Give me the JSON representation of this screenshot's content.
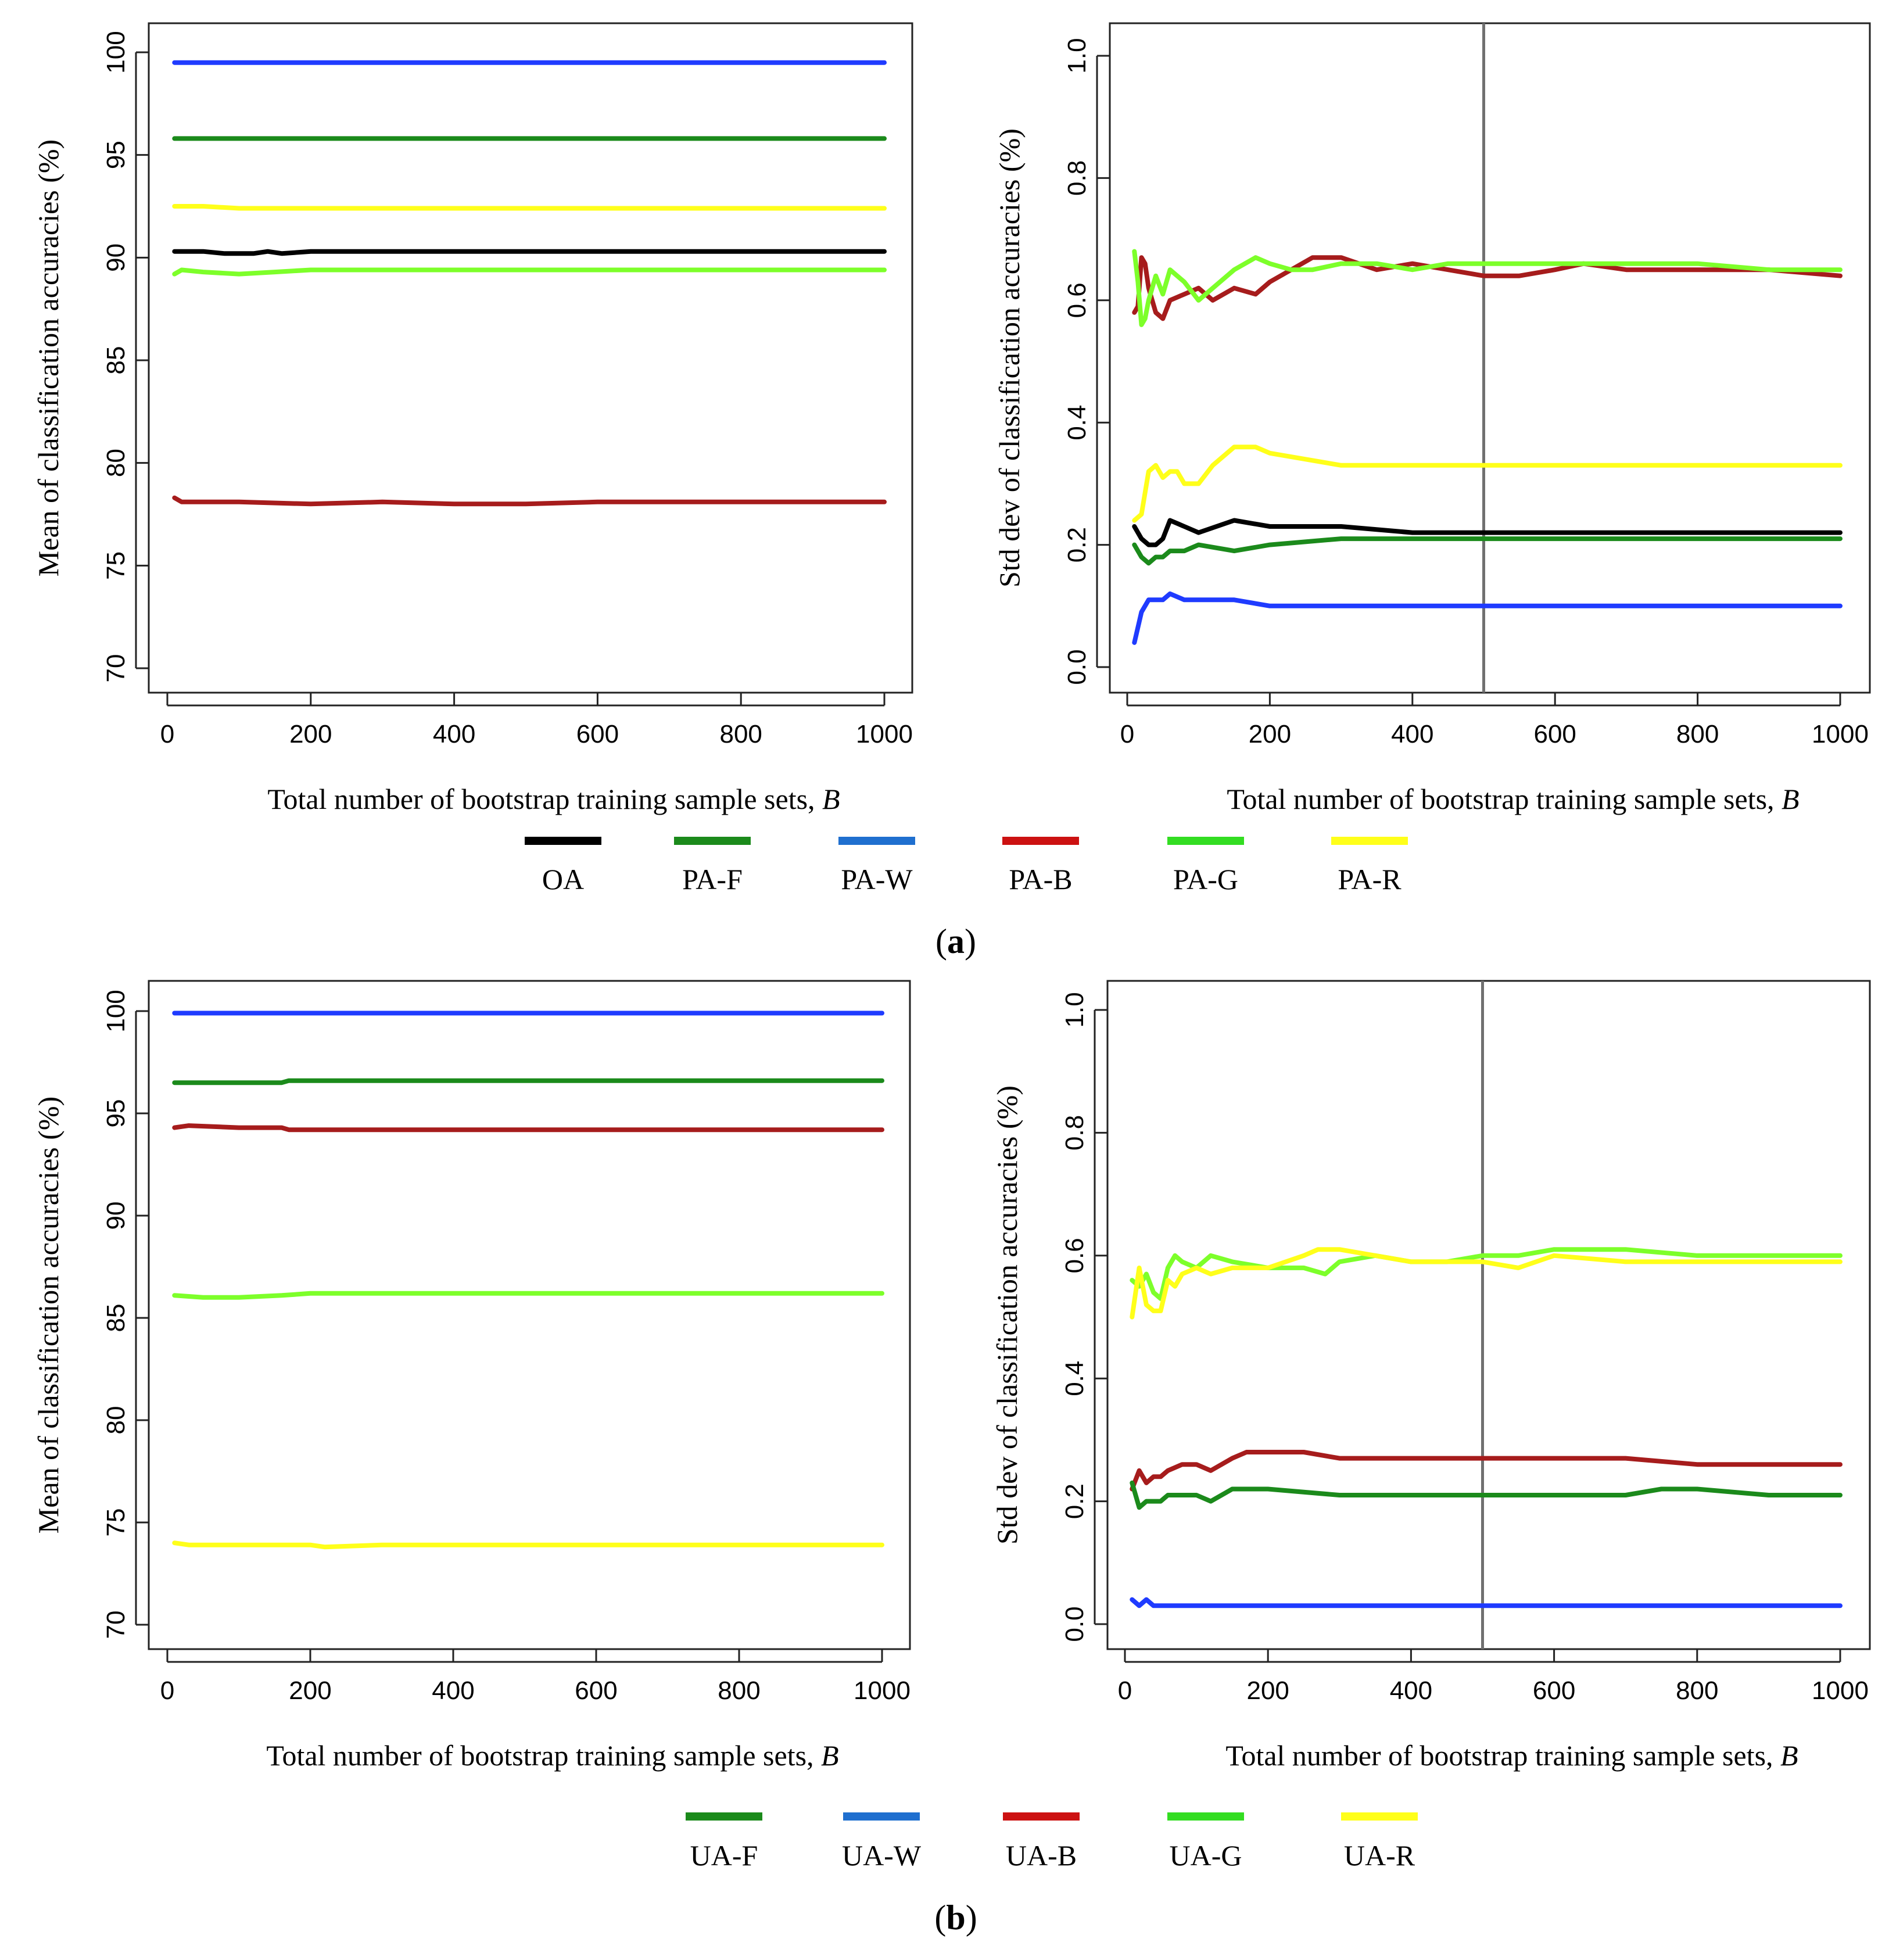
{
  "figure": {
    "panels": [
      {
        "panel_label": "a",
        "legend": [
          "OA",
          "PA-F",
          "PA-W",
          "PA-B",
          "PA-G",
          "PA-R"
        ]
      },
      {
        "panel_label": "b",
        "legend": [
          "UA-F",
          "UA-W",
          "UA-B",
          "UA-G",
          "UA-R"
        ]
      }
    ]
  },
  "colors": {
    "OA": "#000000",
    "F": "#1b8a1b",
    "W": "#1f3bff",
    "W_legend": "#1f6fcf",
    "B": "#a61c1c",
    "B_legend": "#cc1111",
    "G": "#7dff2a",
    "G_legend": "#33dd22",
    "R": "#ffff1a",
    "vline": "#707070"
  },
  "chart_data": [
    {
      "type": "line",
      "panel": "a",
      "xlabel": "Total number of bootstrap training sample sets, B",
      "ylabel": "Mean of classification accuracies (%)",
      "xlim": [
        0,
        1000
      ],
      "ylim": [
        70,
        100
      ],
      "xticks": [
        0,
        200,
        400,
        600,
        800,
        1000
      ],
      "yticks": [
        70,
        75,
        80,
        85,
        90,
        95,
        100
      ],
      "grid": false,
      "series": [
        {
          "name": "PA-W",
          "color_key": "W",
          "x": [
            10,
            100,
            200,
            400,
            600,
            800,
            1000
          ],
          "y": [
            99.5,
            99.5,
            99.5,
            99.5,
            99.5,
            99.5,
            99.5
          ]
        },
        {
          "name": "PA-F",
          "color_key": "F",
          "x": [
            10,
            100,
            200,
            400,
            600,
            800,
            1000
          ],
          "y": [
            95.8,
            95.8,
            95.8,
            95.8,
            95.8,
            95.8,
            95.8
          ]
        },
        {
          "name": "PA-R",
          "color_key": "R",
          "x": [
            10,
            50,
            100,
            200,
            300,
            400,
            500,
            600,
            700,
            800,
            900,
            1000
          ],
          "y": [
            92.5,
            92.5,
            92.4,
            92.4,
            92.4,
            92.4,
            92.4,
            92.4,
            92.4,
            92.4,
            92.4,
            92.4
          ]
        },
        {
          "name": "OA",
          "color_key": "OA",
          "x": [
            10,
            50,
            80,
            120,
            140,
            160,
            200,
            400,
            600,
            800,
            1000
          ],
          "y": [
            90.3,
            90.3,
            90.2,
            90.2,
            90.3,
            90.2,
            90.3,
            90.3,
            90.3,
            90.3,
            90.3
          ]
        },
        {
          "name": "PA-G",
          "color_key": "G",
          "x": [
            10,
            20,
            50,
            100,
            150,
            200,
            300,
            400,
            600,
            800,
            1000
          ],
          "y": [
            89.2,
            89.4,
            89.3,
            89.2,
            89.3,
            89.4,
            89.4,
            89.4,
            89.4,
            89.4,
            89.4
          ]
        },
        {
          "name": "PA-B",
          "color_key": "B",
          "x": [
            10,
            20,
            50,
            100,
            200,
            300,
            400,
            500,
            600,
            800,
            1000
          ],
          "y": [
            78.3,
            78.1,
            78.1,
            78.1,
            78.0,
            78.1,
            78.0,
            78.0,
            78.1,
            78.1,
            78.1
          ]
        }
      ]
    },
    {
      "type": "line",
      "panel": "a",
      "xlabel": "Total number of bootstrap training sample sets, B",
      "ylabel": "Std dev of classification accuracies (%)",
      "xlim": [
        0,
        1000
      ],
      "ylim": [
        0.0,
        1.0
      ],
      "xticks": [
        0,
        200,
        400,
        600,
        800,
        1000
      ],
      "yticks": [
        0.0,
        0.2,
        0.4,
        0.6,
        0.8,
        1.0
      ],
      "vline_x": 500,
      "grid": false,
      "series": [
        {
          "name": "PA-B",
          "color_key": "B",
          "x": [
            10,
            15,
            20,
            25,
            30,
            40,
            50,
            60,
            80,
            100,
            120,
            150,
            180,
            200,
            230,
            260,
            300,
            350,
            400,
            450,
            500,
            550,
            600,
            640,
            700,
            800,
            900,
            1000
          ],
          "y": [
            0.58,
            0.59,
            0.67,
            0.66,
            0.62,
            0.58,
            0.57,
            0.6,
            0.61,
            0.62,
            0.6,
            0.62,
            0.61,
            0.63,
            0.65,
            0.67,
            0.67,
            0.65,
            0.66,
            0.65,
            0.64,
            0.64,
            0.65,
            0.66,
            0.65,
            0.65,
            0.65,
            0.64
          ]
        },
        {
          "name": "PA-G",
          "color_key": "G",
          "x": [
            10,
            15,
            20,
            25,
            30,
            40,
            50,
            60,
            80,
            100,
            120,
            150,
            180,
            200,
            230,
            260,
            300,
            350,
            400,
            450,
            500,
            600,
            700,
            800,
            900,
            1000
          ],
          "y": [
            0.68,
            0.63,
            0.56,
            0.57,
            0.6,
            0.64,
            0.61,
            0.65,
            0.63,
            0.6,
            0.62,
            0.65,
            0.67,
            0.66,
            0.65,
            0.65,
            0.66,
            0.66,
            0.65,
            0.66,
            0.66,
            0.66,
            0.66,
            0.66,
            0.65,
            0.65
          ]
        },
        {
          "name": "PA-R",
          "color_key": "R",
          "x": [
            10,
            20,
            30,
            40,
            50,
            60,
            70,
            80,
            100,
            120,
            150,
            180,
            200,
            250,
            300,
            350,
            400,
            500,
            600,
            700,
            800,
            900,
            1000
          ],
          "y": [
            0.24,
            0.25,
            0.32,
            0.33,
            0.31,
            0.32,
            0.32,
            0.3,
            0.3,
            0.33,
            0.36,
            0.36,
            0.35,
            0.34,
            0.33,
            0.33,
            0.33,
            0.33,
            0.33,
            0.33,
            0.33,
            0.33,
            0.33
          ]
        },
        {
          "name": "OA",
          "color_key": "OA",
          "x": [
            10,
            20,
            30,
            40,
            50,
            60,
            80,
            100,
            150,
            200,
            300,
            400,
            500,
            600,
            700,
            800,
            900,
            1000
          ],
          "y": [
            0.23,
            0.21,
            0.2,
            0.2,
            0.21,
            0.24,
            0.23,
            0.22,
            0.24,
            0.23,
            0.23,
            0.22,
            0.22,
            0.22,
            0.22,
            0.22,
            0.22,
            0.22
          ]
        },
        {
          "name": "PA-F",
          "color_key": "F",
          "x": [
            10,
            20,
            30,
            40,
            50,
            60,
            80,
            100,
            150,
            200,
            300,
            400,
            500,
            600,
            700,
            800,
            900,
            1000
          ],
          "y": [
            0.2,
            0.18,
            0.17,
            0.18,
            0.18,
            0.19,
            0.19,
            0.2,
            0.19,
            0.2,
            0.21,
            0.21,
            0.21,
            0.21,
            0.21,
            0.21,
            0.21,
            0.21
          ]
        },
        {
          "name": "PA-W",
          "color_key": "W",
          "x": [
            10,
            20,
            30,
            40,
            50,
            60,
            80,
            100,
            150,
            200,
            300,
            400,
            500,
            600,
            700,
            800,
            900,
            1000
          ],
          "y": [
            0.04,
            0.09,
            0.11,
            0.11,
            0.11,
            0.12,
            0.11,
            0.11,
            0.11,
            0.1,
            0.1,
            0.1,
            0.1,
            0.1,
            0.1,
            0.1,
            0.1,
            0.1
          ]
        }
      ]
    },
    {
      "type": "line",
      "panel": "b",
      "xlabel": "Total number of bootstrap training sample sets, B",
      "ylabel": "Mean of classification accuracies (%)",
      "xlim": [
        0,
        1000
      ],
      "ylim": [
        70,
        100
      ],
      "xticks": [
        0,
        200,
        400,
        600,
        800,
        1000
      ],
      "yticks": [
        70,
        75,
        80,
        85,
        90,
        95,
        100
      ],
      "grid": false,
      "series": [
        {
          "name": "UA-W",
          "color_key": "W",
          "x": [
            10,
            200,
            400,
            600,
            800,
            1000
          ],
          "y": [
            99.9,
            99.9,
            99.9,
            99.9,
            99.9,
            99.9
          ]
        },
        {
          "name": "UA-F",
          "color_key": "F",
          "x": [
            10,
            100,
            160,
            170,
            400,
            600,
            800,
            1000
          ],
          "y": [
            96.5,
            96.5,
            96.5,
            96.6,
            96.6,
            96.6,
            96.6,
            96.6
          ]
        },
        {
          "name": "UA-B",
          "color_key": "B",
          "x": [
            10,
            30,
            100,
            160,
            170,
            400,
            600,
            800,
            1000
          ],
          "y": [
            94.3,
            94.4,
            94.3,
            94.3,
            94.2,
            94.2,
            94.2,
            94.2,
            94.2
          ]
        },
        {
          "name": "UA-G",
          "color_key": "G",
          "x": [
            10,
            50,
            100,
            160,
            200,
            400,
            600,
            800,
            1000
          ],
          "y": [
            86.1,
            86.0,
            86.0,
            86.1,
            86.2,
            86.2,
            86.2,
            86.2,
            86.2
          ]
        },
        {
          "name": "UA-R",
          "color_key": "R",
          "x": [
            10,
            30,
            100,
            200,
            220,
            300,
            400,
            600,
            800,
            1000
          ],
          "y": [
            74.0,
            73.9,
            73.9,
            73.9,
            73.8,
            73.9,
            73.9,
            73.9,
            73.9,
            73.9
          ]
        }
      ]
    },
    {
      "type": "line",
      "panel": "b",
      "xlabel": "Total number of bootstrap training sample sets, B",
      "ylabel": "Std dev of classification accuracies (%)",
      "xlim": [
        0,
        1000
      ],
      "ylim": [
        0.0,
        1.0
      ],
      "xticks": [
        0,
        200,
        400,
        600,
        800,
        1000
      ],
      "yticks": [
        0.0,
        0.2,
        0.4,
        0.6,
        0.8,
        1.0
      ],
      "vline_x": 500,
      "grid": false,
      "series": [
        {
          "name": "UA-G",
          "color_key": "G",
          "x": [
            10,
            20,
            30,
            40,
            50,
            60,
            70,
            80,
            100,
            120,
            150,
            200,
            250,
            280,
            300,
            350,
            400,
            450,
            500,
            550,
            600,
            700,
            800,
            900,
            1000
          ],
          "y": [
            0.56,
            0.55,
            0.57,
            0.54,
            0.53,
            0.58,
            0.6,
            0.59,
            0.58,
            0.6,
            0.59,
            0.58,
            0.58,
            0.57,
            0.59,
            0.6,
            0.59,
            0.59,
            0.6,
            0.6,
            0.61,
            0.61,
            0.6,
            0.6,
            0.6
          ]
        },
        {
          "name": "UA-R",
          "color_key": "R",
          "x": [
            10,
            20,
            30,
            40,
            50,
            60,
            70,
            80,
            100,
            120,
            150,
            200,
            250,
            270,
            300,
            350,
            400,
            450,
            500,
            550,
            600,
            700,
            800,
            900,
            1000
          ],
          "y": [
            0.5,
            0.58,
            0.52,
            0.51,
            0.51,
            0.56,
            0.55,
            0.57,
            0.58,
            0.57,
            0.58,
            0.58,
            0.6,
            0.61,
            0.61,
            0.6,
            0.59,
            0.59,
            0.59,
            0.58,
            0.6,
            0.59,
            0.59,
            0.59,
            0.59
          ]
        },
        {
          "name": "UA-B",
          "color_key": "B",
          "x": [
            10,
            20,
            30,
            40,
            50,
            60,
            80,
            100,
            120,
            150,
            170,
            200,
            250,
            300,
            350,
            400,
            500,
            600,
            700,
            800,
            900,
            1000
          ],
          "y": [
            0.22,
            0.25,
            0.23,
            0.24,
            0.24,
            0.25,
            0.26,
            0.26,
            0.25,
            0.27,
            0.28,
            0.28,
            0.28,
            0.27,
            0.27,
            0.27,
            0.27,
            0.27,
            0.27,
            0.26,
            0.26,
            0.26
          ]
        },
        {
          "name": "UA-F",
          "color_key": "F",
          "x": [
            10,
            20,
            30,
            40,
            50,
            60,
            80,
            100,
            120,
            150,
            200,
            300,
            400,
            500,
            600,
            700,
            750,
            800,
            900,
            1000
          ],
          "y": [
            0.23,
            0.19,
            0.2,
            0.2,
            0.2,
            0.21,
            0.21,
            0.21,
            0.2,
            0.22,
            0.22,
            0.21,
            0.21,
            0.21,
            0.21,
            0.21,
            0.22,
            0.22,
            0.21,
            0.21
          ]
        },
        {
          "name": "UA-W",
          "color_key": "W",
          "x": [
            10,
            20,
            30,
            40,
            60,
            100,
            200,
            400,
            600,
            800,
            1000
          ],
          "y": [
            0.04,
            0.03,
            0.04,
            0.03,
            0.03,
            0.03,
            0.03,
            0.03,
            0.03,
            0.03,
            0.03
          ]
        }
      ]
    }
  ]
}
